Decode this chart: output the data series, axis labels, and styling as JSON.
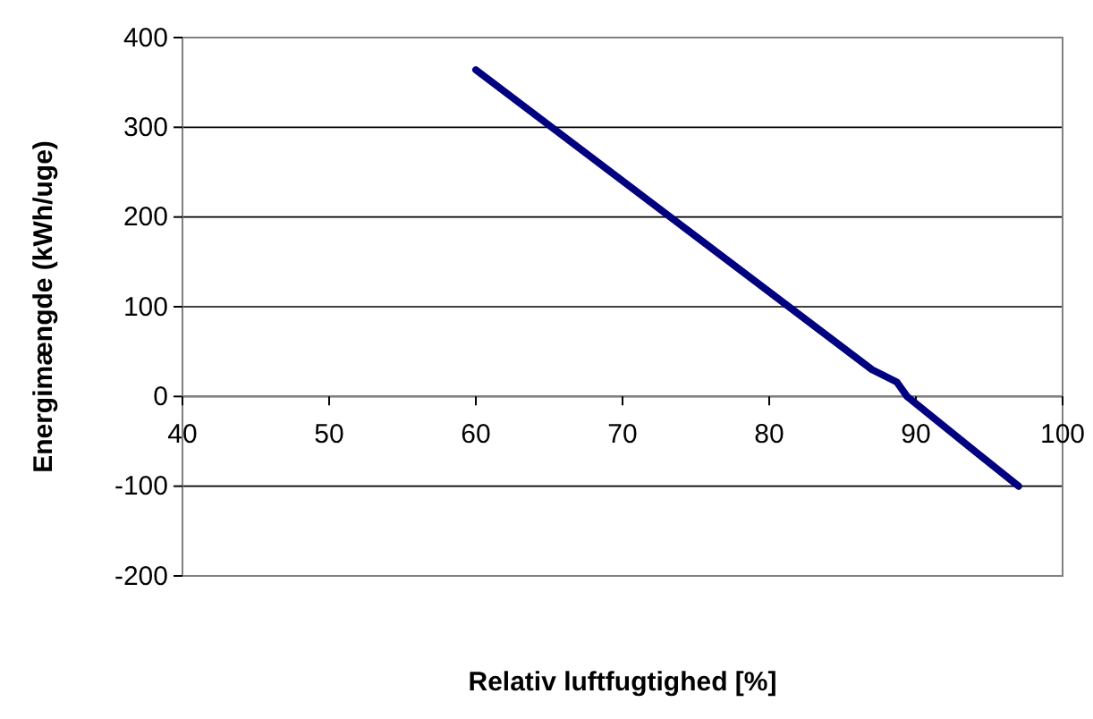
{
  "chart_data": {
    "type": "line",
    "xlabel": "Relativ luftfugtighed [%]",
    "ylabel": "Energimængde (kWh/uge)",
    "x": [
      60,
      87,
      88.7,
      89.4,
      94.1,
      97
    ],
    "series": [
      {
        "color": "#000080",
        "values": [
          364,
          30,
          16,
          0,
          -62,
          -100
        ]
      }
    ],
    "xlim": [
      40,
      100
    ],
    "xticks": [
      40,
      50,
      60,
      70,
      80,
      90,
      100
    ],
    "ylim": [
      -200,
      400
    ],
    "yticks": [
      -200,
      -100,
      0,
      100,
      200,
      300,
      400
    ],
    "grid": "y",
    "marker": "none",
    "line_style": "solid"
  }
}
